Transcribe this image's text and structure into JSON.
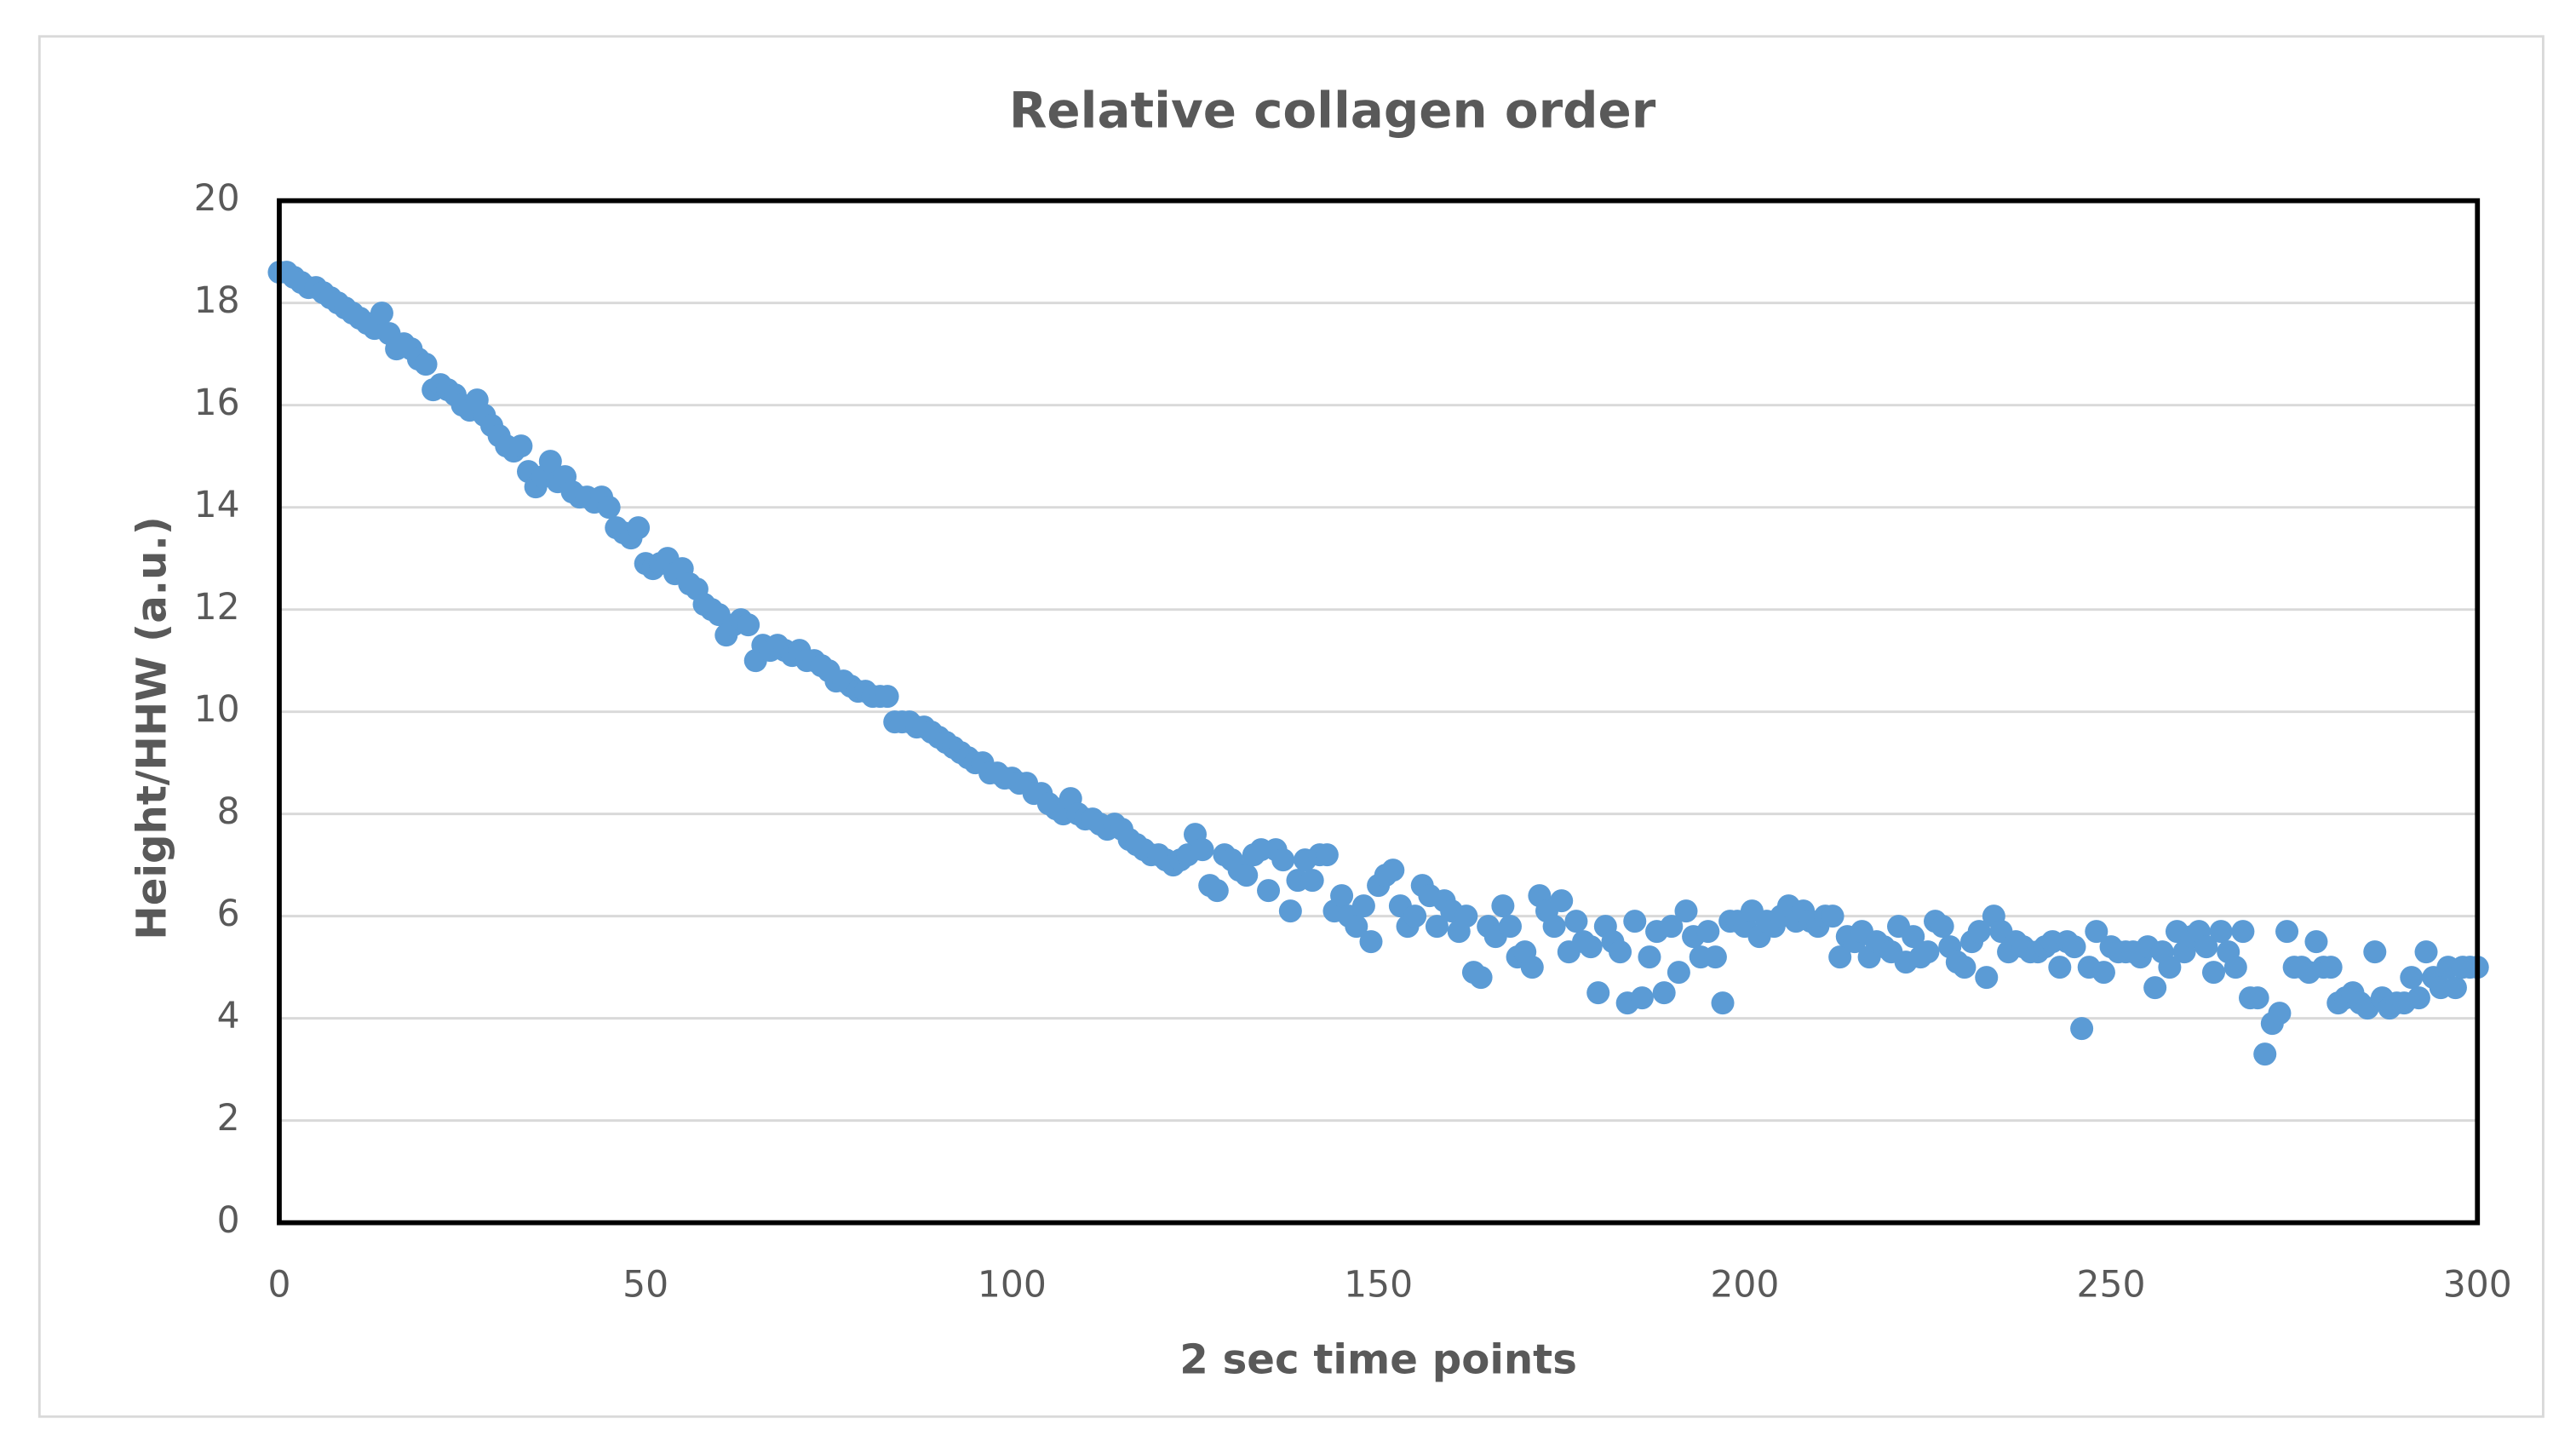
{
  "chart_data": {
    "type": "scatter",
    "title": "Relative collagen order",
    "x_label": "2 sec time points",
    "y_label": "Height/HHW (a.u.)",
    "color": "#5b9bd5",
    "grid": true,
    "xlim": [
      0,
      300
    ],
    "xticks": [
      0,
      50,
      100,
      150,
      200,
      250,
      300
    ],
    "ylim": [
      0,
      20
    ],
    "yticks": [
      0,
      2,
      4,
      6,
      8,
      10,
      12,
      14,
      16,
      18,
      20
    ],
    "x": [
      0,
      1,
      2,
      3,
      4,
      5,
      6,
      7,
      8,
      9,
      10,
      11,
      12,
      13,
      14,
      15,
      16,
      17,
      18,
      19,
      20,
      21,
      22,
      23,
      24,
      25,
      26,
      27,
      28,
      29,
      30,
      31,
      32,
      33,
      34,
      35,
      36,
      37,
      38,
      39,
      40,
      41,
      42,
      43,
      44,
      45,
      46,
      47,
      48,
      49,
      50,
      51,
      52,
      53,
      54,
      55,
      56,
      57,
      58,
      59,
      60,
      61,
      62,
      63,
      64,
      65,
      66,
      67,
      68,
      69,
      70,
      71,
      72,
      73,
      74,
      75,
      76,
      77,
      78,
      79,
      80,
      81,
      82,
      83,
      84,
      85,
      86,
      87,
      88,
      89,
      90,
      91,
      92,
      93,
      94,
      95,
      96,
      97,
      98,
      99,
      100,
      101,
      102,
      103,
      104,
      105,
      106,
      107,
      108,
      109,
      110,
      111,
      112,
      113,
      114,
      115,
      116,
      117,
      118,
      119,
      120,
      121,
      122,
      123,
      124,
      125,
      126,
      127,
      128,
      129,
      130,
      131,
      132,
      133,
      134,
      135,
      136,
      137,
      138,
      139,
      140,
      141,
      142,
      143,
      144,
      145,
      146,
      147,
      148,
      149,
      150,
      151,
      152,
      153,
      154,
      155,
      156,
      157,
      158,
      159,
      160,
      161,
      162,
      163,
      164,
      165,
      166,
      167,
      168,
      169,
      170,
      171,
      172,
      173,
      174,
      175,
      176,
      177,
      178,
      179,
      180,
      181,
      182,
      183,
      184,
      185,
      186,
      187,
      188,
      189,
      190,
      191,
      192,
      193,
      194,
      195,
      196,
      197,
      198,
      199,
      200,
      201,
      202,
      203,
      204,
      205,
      206,
      207,
      208,
      209,
      210,
      211,
      212,
      213,
      214,
      215,
      216,
      217,
      218,
      219,
      220,
      221,
      222,
      223,
      224,
      225,
      226,
      227,
      228,
      229,
      230,
      231,
      232,
      233,
      234,
      235,
      236,
      237,
      238,
      239,
      240,
      241,
      242,
      243,
      244,
      245,
      246,
      247,
      248,
      249,
      250,
      251,
      252,
      253,
      254,
      255,
      256,
      257,
      258,
      259,
      260,
      261,
      262,
      263,
      264,
      265,
      266,
      267,
      268,
      269,
      270,
      271,
      272,
      273,
      274,
      275,
      276,
      277,
      278,
      279,
      280,
      281,
      282,
      283,
      284,
      285,
      286,
      287,
      288,
      289,
      290,
      291,
      292,
      293,
      294,
      295,
      296,
      297,
      298,
      299,
      300
    ],
    "values": [
      18.6,
      18.6,
      18.5,
      18.4,
      18.3,
      18.3,
      18.2,
      18.1,
      18.0,
      17.9,
      17.8,
      17.7,
      17.6,
      17.5,
      17.8,
      17.4,
      17.1,
      17.2,
      17.1,
      16.9,
      16.8,
      16.3,
      16.4,
      16.3,
      16.2,
      16.0,
      15.9,
      16.1,
      15.8,
      15.6,
      15.4,
      15.2,
      15.1,
      15.2,
      14.7,
      14.4,
      14.6,
      14.9,
      14.5,
      14.6,
      14.3,
      14.2,
      14.2,
      14.1,
      14.2,
      14.0,
      13.6,
      13.5,
      13.4,
      13.6,
      12.9,
      12.8,
      12.9,
      13.0,
      12.7,
      12.8,
      12.5,
      12.4,
      12.1,
      12.0,
      11.9,
      11.5,
      11.7,
      11.8,
      11.7,
      11.0,
      11.3,
      11.2,
      11.3,
      11.2,
      11.1,
      11.2,
      11.0,
      11.0,
      10.9,
      10.8,
      10.6,
      10.6,
      10.5,
      10.4,
      10.4,
      10.3,
      10.3,
      10.3,
      9.8,
      9.8,
      9.8,
      9.7,
      9.7,
      9.6,
      9.5,
      9.4,
      9.3,
      9.2,
      9.1,
      9.0,
      9.0,
      8.8,
      8.8,
      8.7,
      8.7,
      8.6,
      8.6,
      8.4,
      8.4,
      8.2,
      8.1,
      8.0,
      8.3,
      8.0,
      7.9,
      7.9,
      7.8,
      7.7,
      7.8,
      7.7,
      7.5,
      7.4,
      7.3,
      7.2,
      7.2,
      7.1,
      7.0,
      7.1,
      7.2,
      7.6,
      7.3,
      6.6,
      6.5,
      7.2,
      7.1,
      6.9,
      6.8,
      7.2,
      7.3,
      6.5,
      7.3,
      7.1,
      6.1,
      6.7,
      7.1,
      6.7,
      7.2,
      7.2,
      6.1,
      6.4,
      6.0,
      5.8,
      6.2,
      5.5,
      6.6,
      6.8,
      6.9,
      6.2,
      5.8,
      6.0,
      6.6,
      6.4,
      5.8,
      6.3,
      6.1,
      5.7,
      6.0,
      4.9,
      4.8,
      5.8,
      5.6,
      6.2,
      5.8,
      5.2,
      5.3,
      5.0,
      6.4,
      6.1,
      5.8,
      6.3,
      5.3,
      5.9,
      5.5,
      5.4,
      4.5,
      5.8,
      5.5,
      5.3,
      4.3,
      5.9,
      4.4,
      5.2,
      5.7,
      4.5,
      5.8,
      4.9,
      6.1,
      5.6,
      5.2,
      5.7,
      5.2,
      4.3,
      5.9,
      5.9,
      5.8,
      6.1,
      5.6,
      5.9,
      5.8,
      6.0,
      6.2,
      5.9,
      6.1,
      5.9,
      5.8,
      6.0,
      6.0,
      5.2,
      5.6,
      5.5,
      5.7,
      5.2,
      5.5,
      5.4,
      5.3,
      5.8,
      5.1,
      5.6,
      5.2,
      5.3,
      5.9,
      5.8,
      5.4,
      5.1,
      5.0,
      5.5,
      5.7,
      4.8,
      6.0,
      5.7,
      5.3,
      5.5,
      5.4,
      5.3,
      5.3,
      5.4,
      5.5,
      5.0,
      5.5,
      5.4,
      3.8,
      5.0,
      5.7,
      4.9,
      5.4,
      5.3,
      5.3,
      5.3,
      5.2,
      5.4,
      4.6,
      5.3,
      5.0,
      5.7,
      5.3,
      5.6,
      5.7,
      5.4,
      4.9,
      5.7,
      5.3,
      5.0,
      5.7,
      4.4,
      4.4,
      3.3,
      3.9,
      4.1,
      5.7,
      5.0,
      5.0,
      4.9,
      5.5,
      5.0,
      5.0,
      4.3,
      4.4,
      4.5,
      4.3,
      4.2,
      5.3,
      4.4,
      4.2,
      4.3,
      4.3,
      4.8,
      4.4,
      5.3,
      4.8,
      4.6,
      5.0,
      4.6,
      5.0,
      5.0,
      5.0
    ]
  }
}
